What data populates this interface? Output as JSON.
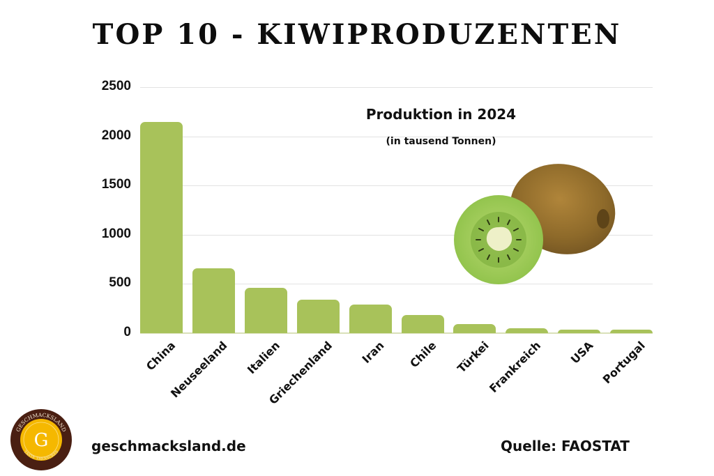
{
  "title": "TOP 10 - KIWIPRODUZENTEN",
  "chart_data": {
    "type": "bar",
    "title": "Produktion in 2024",
    "subtitle": "(in tausend Tonnen)",
    "categories": [
      "China",
      "Neuseeland",
      "Italien",
      "Griechenland",
      "Iran",
      "Chile",
      "Türkei",
      "Frankreich",
      "USA",
      "Portugal"
    ],
    "values": [
      2146,
      659,
      460,
      340,
      290,
      184,
      92,
      50,
      35,
      33
    ],
    "xlabel": "",
    "ylabel": "",
    "ylim": [
      0,
      2500
    ],
    "yticks": [
      0,
      500,
      1000,
      1500,
      2000,
      2500
    ],
    "grid": true,
    "legend": "none",
    "bar_color": "#a8c25a"
  },
  "yticks_labels": [
    "2500",
    "2000",
    "1500",
    "1000",
    "500",
    "0"
  ],
  "footer": {
    "website": "geschmacksland.de",
    "source": "Quelle: FAOSTAT",
    "logo": {
      "initial": "G",
      "top_text": "GESCHMACKSLAND",
      "bottom_text": "TASTE TREASURES",
      "ring_color": "#4a1f12",
      "inner_color": "#f5b800"
    }
  },
  "decoration": "kiwi-illustration"
}
